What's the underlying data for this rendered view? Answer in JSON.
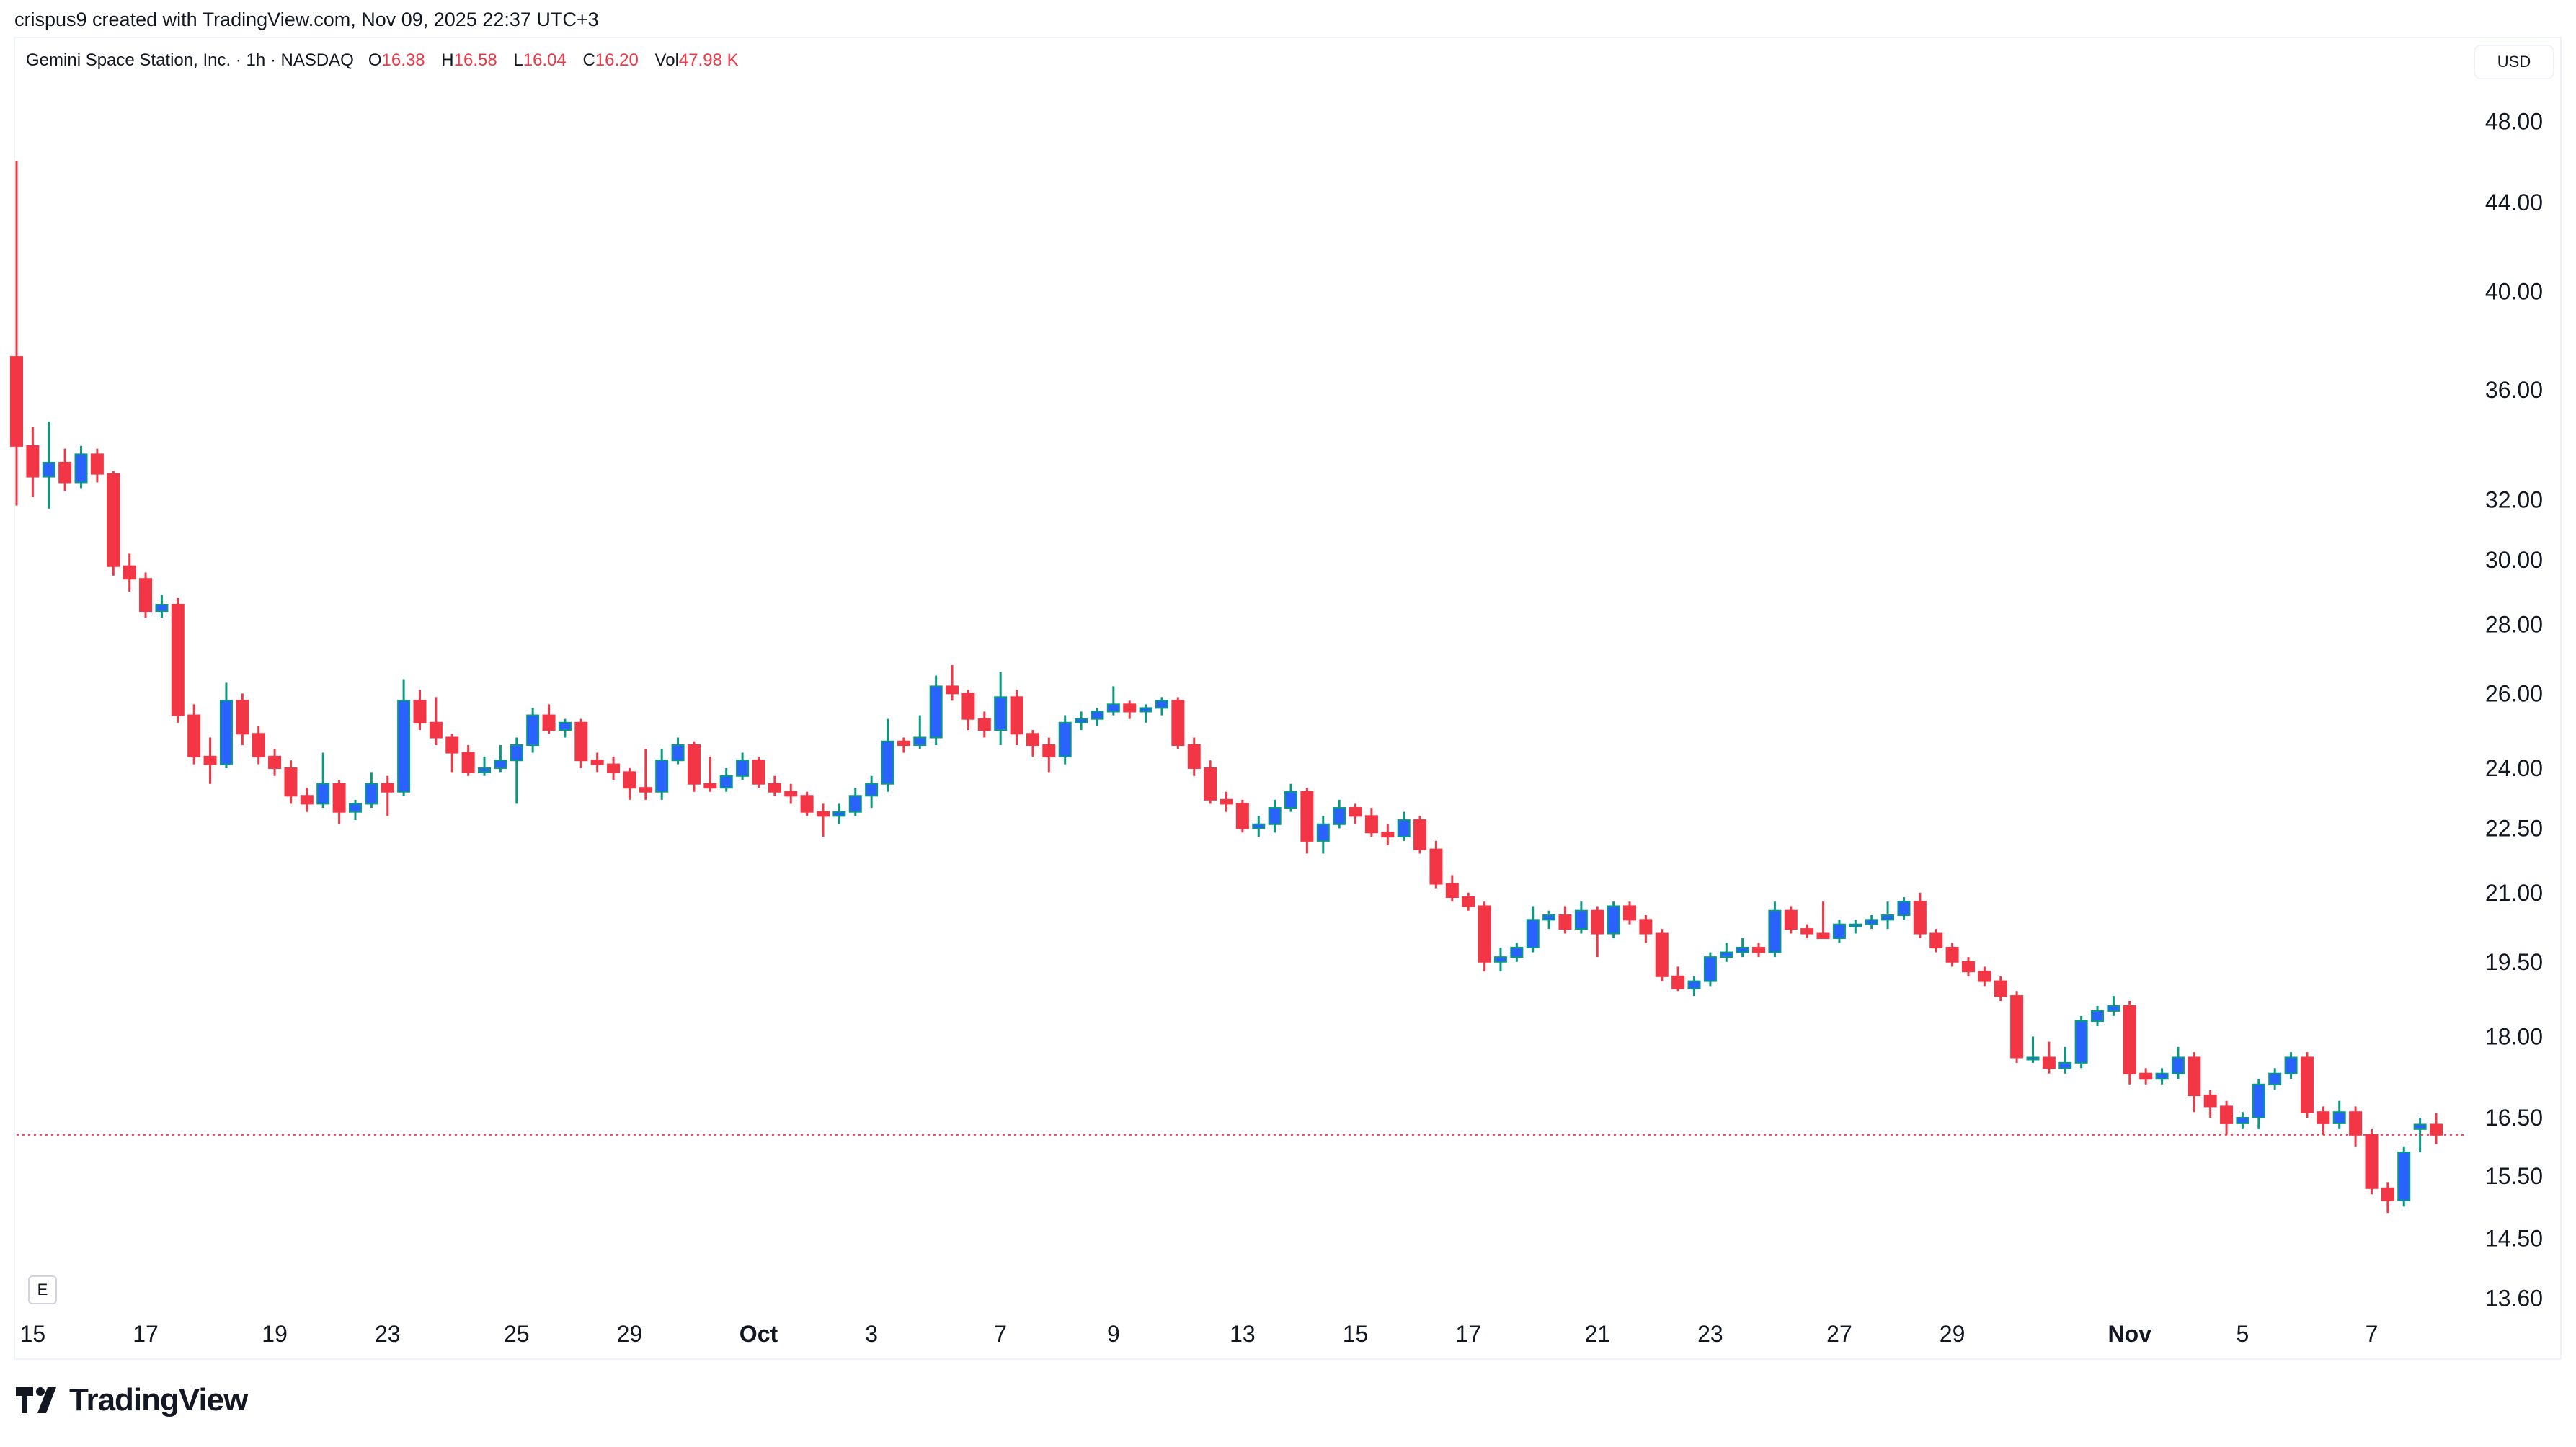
{
  "credit": "crispus9 created with TradingView.com, Nov 09, 2025 22:37 UTC+3",
  "legend": {
    "symbol": "Gemini Space Station, Inc. · 1h · NASDAQ",
    "o_label": "O",
    "o": "16.38",
    "h_label": "H",
    "h": "16.58",
    "l_label": "L",
    "l": "16.04",
    "c_label": "C",
    "c": "16.20",
    "vol_label": "Vol",
    "vol": "47.98 K"
  },
  "currency_button": "USD",
  "log_button": "E",
  "brand": "TradingView",
  "colors": {
    "up_body": "#2962ff",
    "up_border": "#089981",
    "down": "#f23645",
    "last_price_line": "#f23645"
  },
  "chart_data": {
    "type": "candlestick",
    "title": "Gemini Space Station, Inc. · 1h · NASDAQ",
    "y_scale": "log",
    "ylim": [
      13.3,
      50
    ],
    "y_ticks": [
      "48.00",
      "44.00",
      "40.00",
      "36.00",
      "32.00",
      "30.00",
      "28.00",
      "26.00",
      "24.00",
      "22.50",
      "21.00",
      "19.50",
      "18.00",
      "16.50",
      "15.50",
      "14.50",
      "13.60"
    ],
    "x_ticks": [
      {
        "label": "15",
        "index": 1
      },
      {
        "label": "17",
        "index": 8
      },
      {
        "label": "19",
        "index": 16
      },
      {
        "label": "23",
        "index": 23
      },
      {
        "label": "25",
        "index": 31
      },
      {
        "label": "29",
        "index": 38
      },
      {
        "label": "Oct",
        "index": 46,
        "bold": true
      },
      {
        "label": "3",
        "index": 53
      },
      {
        "label": "7",
        "index": 61
      },
      {
        "label": "9",
        "index": 68
      },
      {
        "label": "13",
        "index": 76
      },
      {
        "label": "15",
        "index": 83
      },
      {
        "label": "17",
        "index": 90
      },
      {
        "label": "21",
        "index": 98
      },
      {
        "label": "23",
        "index": 105
      },
      {
        "label": "27",
        "index": 113
      },
      {
        "label": "29",
        "index": 120
      },
      {
        "label": "Nov",
        "index": 131,
        "bold": true
      },
      {
        "label": "5",
        "index": 138
      },
      {
        "label": "7",
        "index": 146
      }
    ],
    "last_price": 16.2,
    "ohlc": [
      [
        37.3,
        46.0,
        31.8,
        33.9
      ],
      [
        33.9,
        34.6,
        32.1,
        32.8
      ],
      [
        32.8,
        34.8,
        31.7,
        33.3
      ],
      [
        33.3,
        33.8,
        32.3,
        32.6
      ],
      [
        32.6,
        33.9,
        32.4,
        33.6
      ],
      [
        33.6,
        33.8,
        32.6,
        32.9
      ],
      [
        32.9,
        33.0,
        29.5,
        29.8
      ],
      [
        29.8,
        30.2,
        29.0,
        29.4
      ],
      [
        29.4,
        29.6,
        28.2,
        28.4
      ],
      [
        28.4,
        28.9,
        28.2,
        28.6
      ],
      [
        28.6,
        28.8,
        25.2,
        25.4
      ],
      [
        25.4,
        25.7,
        24.1,
        24.3
      ],
      [
        24.3,
        24.8,
        23.6,
        24.1
      ],
      [
        24.1,
        26.3,
        24.0,
        25.8
      ],
      [
        25.8,
        26.0,
        24.6,
        24.9
      ],
      [
        24.9,
        25.1,
        24.1,
        24.3
      ],
      [
        24.3,
        24.5,
        23.8,
        24.0
      ],
      [
        24.0,
        24.2,
        23.1,
        23.3
      ],
      [
        23.3,
        23.5,
        22.9,
        23.1
      ],
      [
        23.1,
        24.4,
        23.0,
        23.6
      ],
      [
        23.6,
        23.7,
        22.6,
        22.9
      ],
      [
        22.9,
        23.2,
        22.7,
        23.1
      ],
      [
        23.1,
        23.9,
        23.0,
        23.6
      ],
      [
        23.6,
        23.8,
        22.8,
        23.4
      ],
      [
        23.4,
        26.4,
        23.3,
        25.8
      ],
      [
        25.8,
        26.1,
        25.0,
        25.2
      ],
      [
        25.2,
        25.9,
        24.6,
        24.8
      ],
      [
        24.8,
        24.9,
        23.9,
        24.4
      ],
      [
        24.4,
        24.6,
        23.8,
        23.9
      ],
      [
        23.9,
        24.3,
        23.8,
        24.0
      ],
      [
        24.0,
        24.6,
        23.9,
        24.2
      ],
      [
        24.2,
        24.8,
        23.1,
        24.6
      ],
      [
        24.6,
        25.6,
        24.4,
        25.4
      ],
      [
        25.4,
        25.7,
        24.9,
        25.0
      ],
      [
        25.0,
        25.3,
        24.8,
        25.2
      ],
      [
        25.2,
        25.3,
        24.0,
        24.2
      ],
      [
        24.2,
        24.4,
        23.9,
        24.1
      ],
      [
        24.1,
        24.3,
        23.7,
        23.9
      ],
      [
        23.9,
        24.0,
        23.2,
        23.5
      ],
      [
        23.5,
        24.5,
        23.2,
        23.4
      ],
      [
        23.4,
        24.5,
        23.2,
        24.2
      ],
      [
        24.2,
        24.8,
        24.1,
        24.6
      ],
      [
        24.6,
        24.7,
        23.4,
        23.6
      ],
      [
        23.6,
        24.3,
        23.4,
        23.5
      ],
      [
        23.5,
        24.0,
        23.4,
        23.8
      ],
      [
        23.8,
        24.4,
        23.7,
        24.2
      ],
      [
        24.2,
        24.3,
        23.5,
        23.6
      ],
      [
        23.6,
        23.8,
        23.3,
        23.4
      ],
      [
        23.4,
        23.6,
        23.1,
        23.3
      ],
      [
        23.3,
        23.4,
        22.8,
        22.9
      ],
      [
        22.9,
        23.1,
        22.3,
        22.8
      ],
      [
        22.8,
        23.1,
        22.6,
        22.9
      ],
      [
        22.9,
        23.5,
        22.8,
        23.3
      ],
      [
        23.3,
        23.8,
        23.0,
        23.6
      ],
      [
        23.6,
        25.3,
        23.4,
        24.7
      ],
      [
        24.7,
        24.8,
        24.4,
        24.6
      ],
      [
        24.6,
        25.4,
        24.5,
        24.8
      ],
      [
        24.8,
        26.5,
        24.6,
        26.2
      ],
      [
        26.2,
        26.8,
        25.8,
        26.0
      ],
      [
        26.0,
        26.1,
        25.0,
        25.3
      ],
      [
        25.3,
        25.5,
        24.8,
        25.0
      ],
      [
        25.0,
        26.6,
        24.6,
        25.9
      ],
      [
        25.9,
        26.1,
        24.6,
        24.9
      ],
      [
        24.9,
        25.0,
        24.3,
        24.6
      ],
      [
        24.6,
        24.8,
        23.9,
        24.3
      ],
      [
        24.3,
        25.4,
        24.1,
        25.2
      ],
      [
        25.2,
        25.5,
        25.0,
        25.3
      ],
      [
        25.3,
        25.6,
        25.1,
        25.5
      ],
      [
        25.5,
        26.2,
        25.4,
        25.7
      ],
      [
        25.7,
        25.8,
        25.3,
        25.5
      ],
      [
        25.5,
        25.7,
        25.2,
        25.6
      ],
      [
        25.6,
        25.9,
        25.4,
        25.8
      ],
      [
        25.8,
        25.9,
        24.5,
        24.6
      ],
      [
        24.6,
        24.8,
        23.8,
        24.0
      ],
      [
        24.0,
        24.2,
        23.1,
        23.2
      ],
      [
        23.2,
        23.4,
        22.9,
        23.1
      ],
      [
        23.1,
        23.2,
        22.4,
        22.5
      ],
      [
        22.5,
        22.8,
        22.3,
        22.6
      ],
      [
        22.6,
        23.2,
        22.4,
        23.0
      ],
      [
        23.0,
        23.6,
        22.9,
        23.4
      ],
      [
        23.4,
        23.5,
        21.9,
        22.2
      ],
      [
        22.2,
        22.8,
        21.9,
        22.6
      ],
      [
        22.6,
        23.2,
        22.5,
        23.0
      ],
      [
        23.0,
        23.1,
        22.6,
        22.8
      ],
      [
        22.8,
        23.0,
        22.3,
        22.4
      ],
      [
        22.4,
        22.6,
        22.1,
        22.3
      ],
      [
        22.3,
        22.9,
        22.2,
        22.7
      ],
      [
        22.7,
        22.8,
        21.9,
        22.0
      ],
      [
        22.0,
        22.2,
        21.1,
        21.2
      ],
      [
        21.2,
        21.4,
        20.8,
        20.9
      ],
      [
        20.9,
        21.0,
        20.6,
        20.7
      ],
      [
        20.7,
        20.8,
        19.3,
        19.5
      ],
      [
        19.5,
        19.8,
        19.3,
        19.6
      ],
      [
        19.6,
        19.9,
        19.5,
        19.8
      ],
      [
        19.8,
        20.7,
        19.7,
        20.4
      ],
      [
        20.4,
        20.6,
        20.2,
        20.5
      ],
      [
        20.5,
        20.7,
        20.1,
        20.2
      ],
      [
        20.2,
        20.8,
        20.1,
        20.6
      ],
      [
        20.6,
        20.7,
        19.6,
        20.1
      ],
      [
        20.1,
        20.8,
        20.0,
        20.7
      ],
      [
        20.7,
        20.8,
        20.3,
        20.4
      ],
      [
        20.4,
        20.5,
        19.9,
        20.1
      ],
      [
        20.1,
        20.2,
        19.1,
        19.2
      ],
      [
        19.2,
        19.4,
        18.9,
        18.95
      ],
      [
        18.95,
        19.2,
        18.8,
        19.1
      ],
      [
        19.1,
        19.7,
        19.0,
        19.6
      ],
      [
        19.6,
        19.9,
        19.5,
        19.7
      ],
      [
        19.7,
        20.0,
        19.6,
        19.8
      ],
      [
        19.8,
        19.9,
        19.6,
        19.7
      ],
      [
        19.7,
        20.8,
        19.6,
        20.6
      ],
      [
        20.6,
        20.7,
        20.1,
        20.2
      ],
      [
        20.2,
        20.3,
        20.0,
        20.1
      ],
      [
        20.1,
        20.8,
        20.0,
        20.0
      ],
      [
        20.0,
        20.4,
        19.9,
        20.3
      ],
      [
        20.3,
        20.4,
        20.1,
        20.3
      ],
      [
        20.3,
        20.5,
        20.2,
        20.4
      ],
      [
        20.4,
        20.8,
        20.2,
        20.5
      ],
      [
        20.5,
        20.9,
        20.4,
        20.8
      ],
      [
        20.8,
        21.0,
        20.0,
        20.1
      ],
      [
        20.1,
        20.2,
        19.7,
        19.8
      ],
      [
        19.8,
        19.9,
        19.4,
        19.5
      ],
      [
        19.5,
        19.6,
        19.2,
        19.3
      ],
      [
        19.3,
        19.4,
        19.0,
        19.1
      ],
      [
        19.1,
        19.2,
        18.7,
        18.8
      ],
      [
        18.8,
        18.9,
        17.5,
        17.6
      ],
      [
        17.6,
        18.0,
        17.5,
        17.6
      ],
      [
        17.6,
        17.9,
        17.3,
        17.4
      ],
      [
        17.4,
        17.8,
        17.3,
        17.5
      ],
      [
        17.5,
        18.4,
        17.4,
        18.3
      ],
      [
        18.3,
        18.6,
        18.2,
        18.5
      ],
      [
        18.5,
        18.8,
        18.4,
        18.6
      ],
      [
        18.6,
        18.7,
        17.1,
        17.3
      ],
      [
        17.3,
        17.4,
        17.1,
        17.2
      ],
      [
        17.2,
        17.4,
        17.1,
        17.3
      ],
      [
        17.3,
        17.8,
        17.2,
        17.6
      ],
      [
        17.6,
        17.7,
        16.6,
        16.9
      ],
      [
        16.9,
        17.0,
        16.5,
        16.7
      ],
      [
        16.7,
        16.8,
        16.2,
        16.4
      ],
      [
        16.4,
        16.6,
        16.3,
        16.5
      ],
      [
        16.5,
        17.2,
        16.3,
        17.1
      ],
      [
        17.1,
        17.4,
        17.0,
        17.3
      ],
      [
        17.3,
        17.7,
        17.2,
        17.6
      ],
      [
        17.6,
        17.7,
        16.5,
        16.6
      ],
      [
        16.6,
        16.7,
        16.2,
        16.4
      ],
      [
        16.4,
        16.8,
        16.3,
        16.6
      ],
      [
        16.6,
        16.7,
        16.0,
        16.2
      ],
      [
        16.2,
        16.3,
        15.2,
        15.3
      ],
      [
        15.3,
        15.4,
        14.9,
        15.1
      ],
      [
        15.1,
        16.0,
        15.0,
        15.9
      ],
      [
        16.3,
        16.5,
        15.9,
        16.38
      ],
      [
        16.38,
        16.58,
        16.04,
        16.2
      ]
    ]
  }
}
